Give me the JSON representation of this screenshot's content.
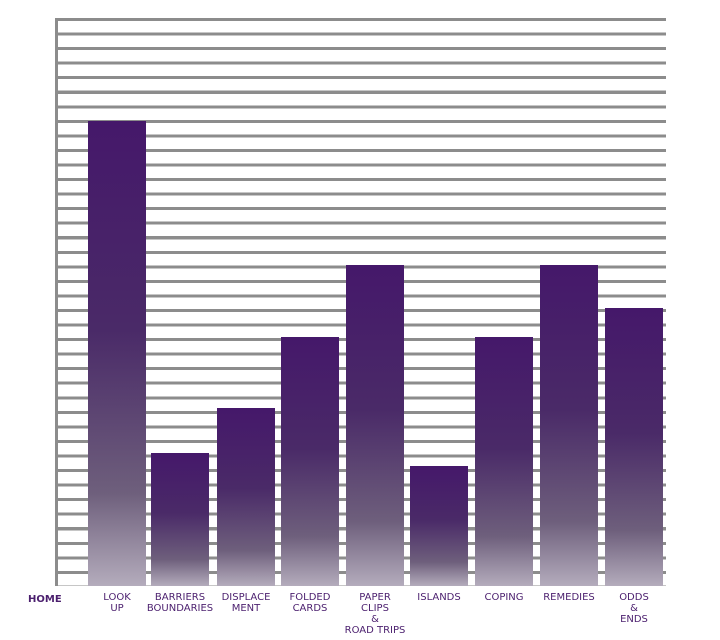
{
  "nav": {
    "home": "HOME",
    "items": [
      {
        "label": "LOOK\nUP"
      },
      {
        "label": "BARRIERS\nBOUNDARIES"
      },
      {
        "label": "DISPLACE\nMENT"
      },
      {
        "label": "FOLDED\nCARDS"
      },
      {
        "label": "PAPER\nCLIPS\n&\nROAD TRIPS"
      },
      {
        "label": "ISLANDS"
      },
      {
        "label": "COPING"
      },
      {
        "label": "REMEDIES"
      },
      {
        "label": "ODDS\n&\nENDS"
      }
    ]
  }
}
